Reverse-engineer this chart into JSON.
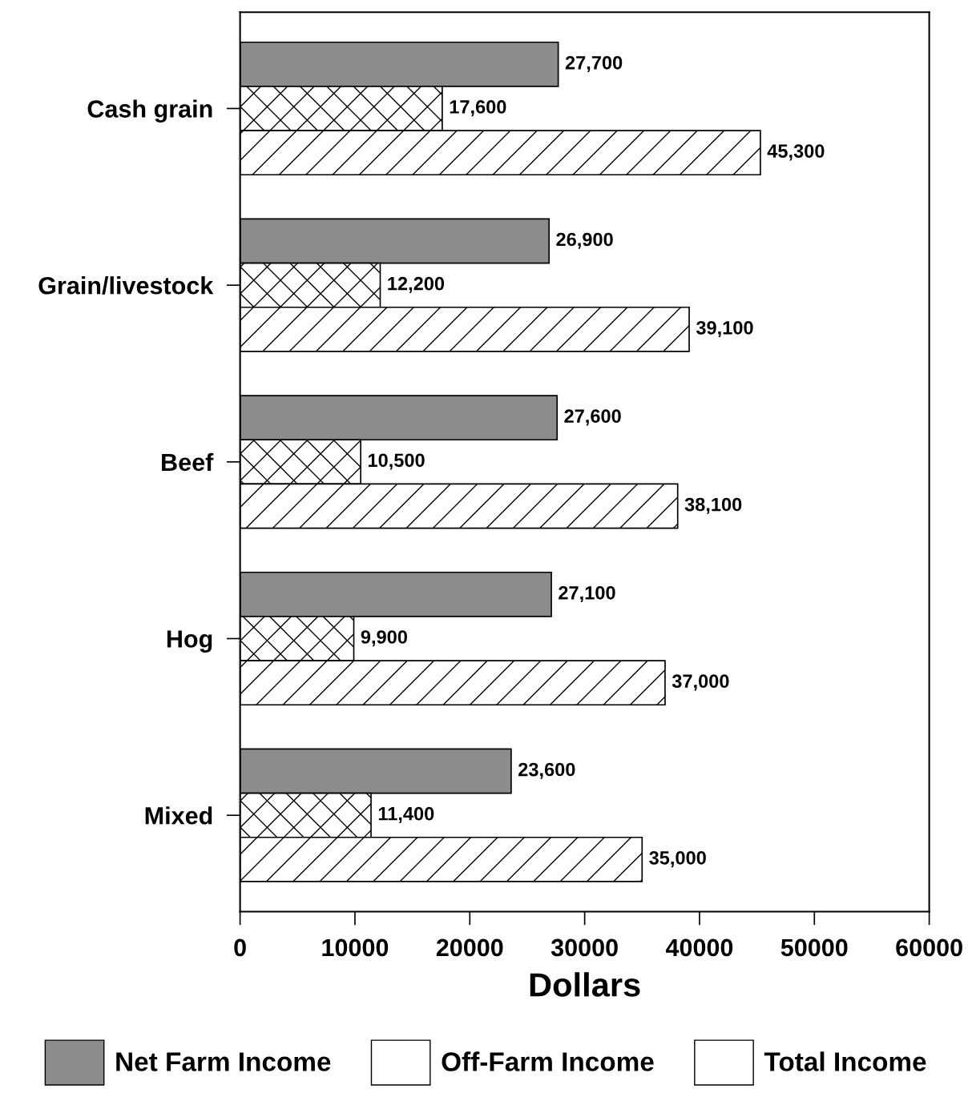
{
  "chart_data": {
    "type": "bar",
    "orientation": "horizontal",
    "xlabel": "Dollars",
    "categories": [
      "Cash grain",
      "Grain/livestock",
      "Beef",
      "Hog",
      "Mixed"
    ],
    "series": [
      {
        "name": "Net Farm Income",
        "color": "#8c8c8c",
        "values": [
          27700,
          26900,
          27600,
          27100,
          23600
        ],
        "value_labels": [
          "27,700",
          "26,900",
          "27,600",
          "27,100",
          "23,600"
        ]
      },
      {
        "name": "Off-Farm Income",
        "color": "#ffffff",
        "values": [
          17600,
          12200,
          10500,
          9900,
          11400
        ],
        "value_labels": [
          "17,600",
          "12,200",
          "10,500",
          "9,900",
          "11,400"
        ]
      },
      {
        "name": "Total Income",
        "color": "#ffffff",
        "values": [
          45300,
          39100,
          38100,
          37000,
          35000
        ],
        "value_labels": [
          "45,300",
          "39,100",
          "38,100",
          "37,000",
          "35,000"
        ]
      }
    ],
    "xlim": [
      0,
      60000
    ],
    "xticks": [
      0,
      10000,
      20000,
      30000,
      40000,
      50000,
      60000
    ],
    "grid": false,
    "legend": "bottom"
  }
}
